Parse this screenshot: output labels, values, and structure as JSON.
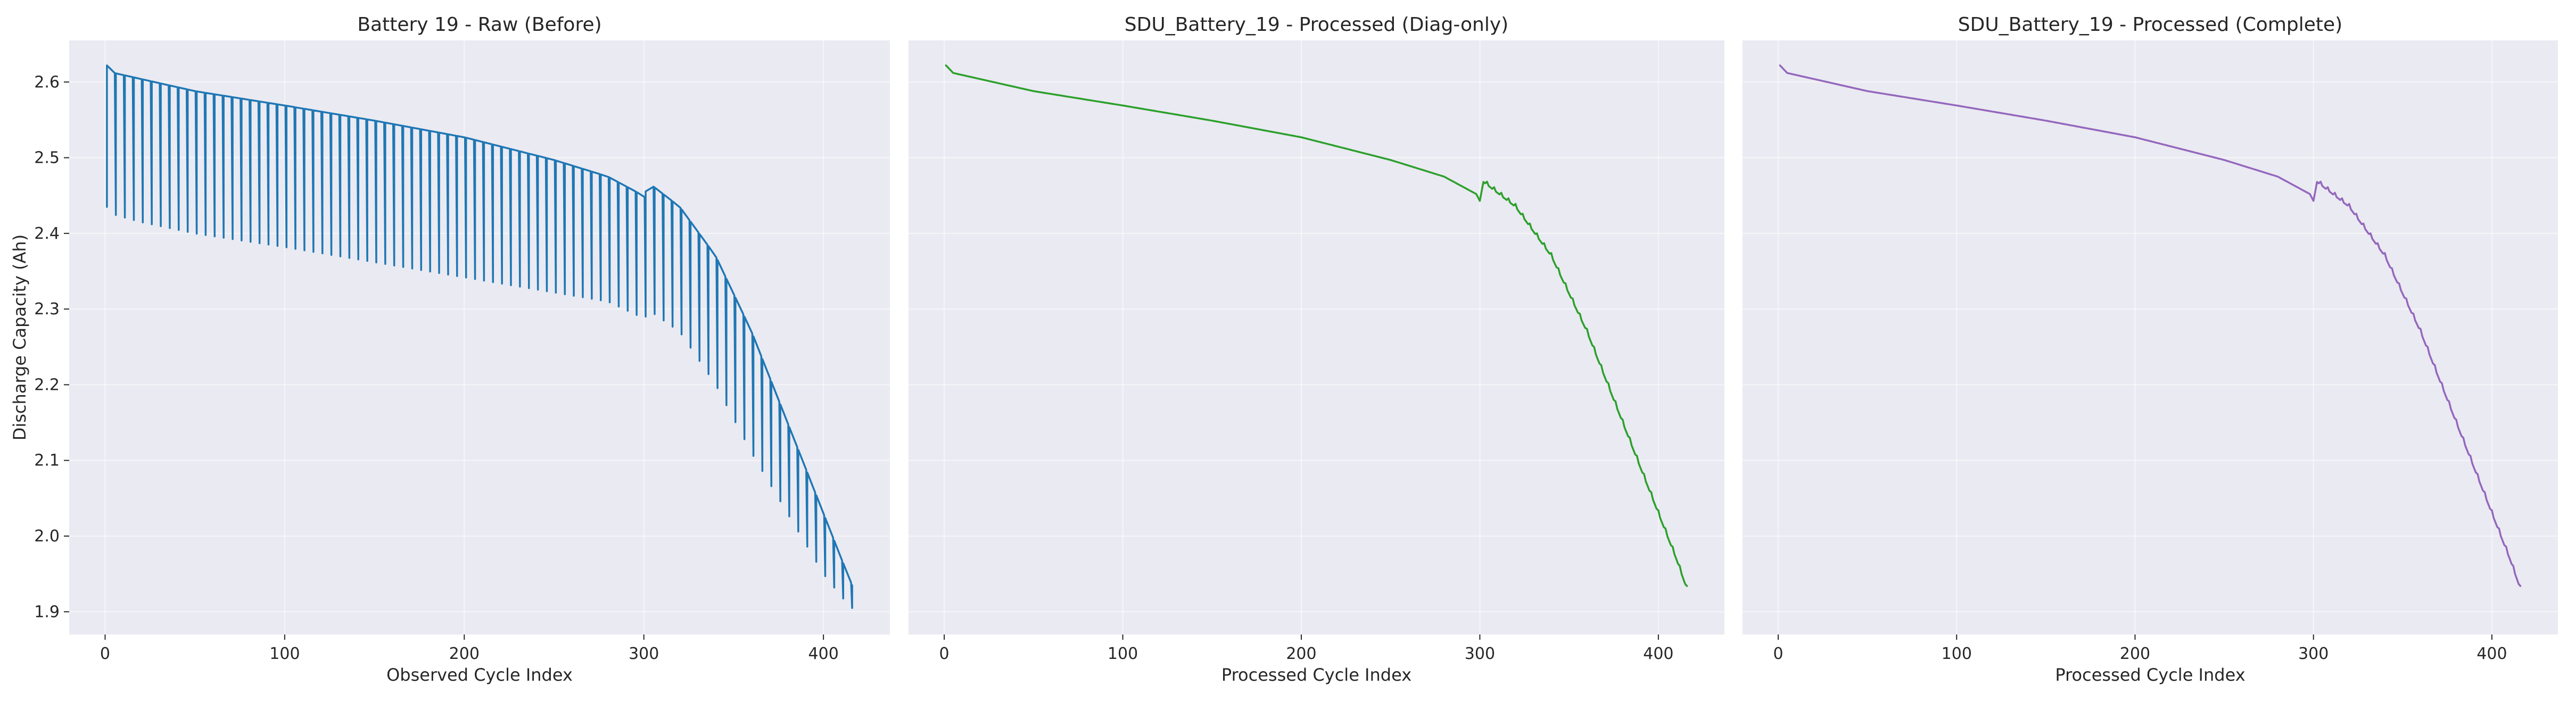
{
  "chart_data": [
    {
      "type": "line",
      "title": "Battery 19 - Raw (Before)",
      "xlabel": "Observed Cycle Index",
      "ylabel": "Discharge Capacity (Ah)",
      "xlim": [
        -20,
        437
      ],
      "ylim": [
        1.87,
        2.655
      ],
      "xticks": [
        0,
        100,
        200,
        300,
        400
      ],
      "yticks": [
        1.9,
        2.0,
        2.1,
        2.2,
        2.3,
        2.4,
        2.5,
        2.6
      ],
      "ytick_labels": [
        "1.9",
        "2.0",
        "2.1",
        "2.2",
        "2.3",
        "2.4",
        "2.5",
        "2.6"
      ],
      "grid": true,
      "color": "#1f77b4",
      "pattern": "sawtooth",
      "period": 5,
      "series": [
        {
          "upper": {
            "x": [
              1,
              5,
              20,
              50,
              100,
              150,
              200,
              250,
              280,
              298,
              300,
              302,
              320,
              340,
              360,
              380,
              400,
              410,
              416
            ],
            "y": [
              2.622,
              2.612,
              2.604,
              2.588,
              2.569,
              2.549,
              2.527,
              2.497,
              2.475,
              2.452,
              2.443,
              2.468,
              2.435,
              2.37,
              2.27,
              2.15,
              2.03,
              1.97,
              1.935
            ]
          },
          "lower": {
            "x": [
              1,
              5,
              20,
              50,
              100,
              150,
              200,
              250,
              280,
              298,
              300,
              302,
              320,
              340,
              360,
              380,
              400,
              410,
              416
            ],
            "y": [
              2.435,
              2.425,
              2.415,
              2.4,
              2.382,
              2.362,
              2.342,
              2.322,
              2.31,
              2.29,
              2.28,
              2.3,
              2.27,
              2.2,
              2.11,
              2.03,
              1.95,
              1.92,
              1.905
            ]
          }
        }
      ]
    },
    {
      "type": "line",
      "title": "SDU_Battery_19 - Processed (Diag-only)",
      "xlabel": "Processed Cycle Index",
      "ylabel": "",
      "xlim": [
        -20,
        437
      ],
      "ylim": [
        1.87,
        2.655
      ],
      "xticks": [
        0,
        100,
        200,
        300,
        400
      ],
      "grid": true,
      "color": "#2ca02c",
      "series": [
        {
          "x": [
            1,
            5,
            20,
            50,
            100,
            150,
            200,
            250,
            280,
            298,
            300,
            302,
            320,
            340,
            360,
            380,
            400,
            410,
            416
          ],
          "y": [
            2.622,
            2.612,
            2.604,
            2.588,
            2.569,
            2.549,
            2.527,
            2.497,
            2.475,
            2.452,
            2.443,
            2.468,
            2.435,
            2.37,
            2.27,
            2.15,
            2.03,
            1.97,
            1.93
          ]
        }
      ]
    },
    {
      "type": "line",
      "title": "SDU_Battery_19 - Processed (Complete)",
      "xlabel": "Processed Cycle Index",
      "ylabel": "",
      "xlim": [
        -20,
        437
      ],
      "ylim": [
        1.87,
        2.655
      ],
      "xticks": [
        0,
        100,
        200,
        300,
        400
      ],
      "grid": true,
      "color": "#9467bd",
      "series": [
        {
          "x": [
            1,
            5,
            20,
            50,
            100,
            150,
            200,
            250,
            280,
            298,
            300,
            302,
            320,
            340,
            360,
            380,
            400,
            410,
            416
          ],
          "y": [
            2.622,
            2.612,
            2.604,
            2.588,
            2.569,
            2.549,
            2.527,
            2.497,
            2.475,
            2.452,
            2.443,
            2.468,
            2.435,
            2.37,
            2.27,
            2.15,
            2.03,
            1.97,
            1.93
          ]
        }
      ]
    }
  ]
}
